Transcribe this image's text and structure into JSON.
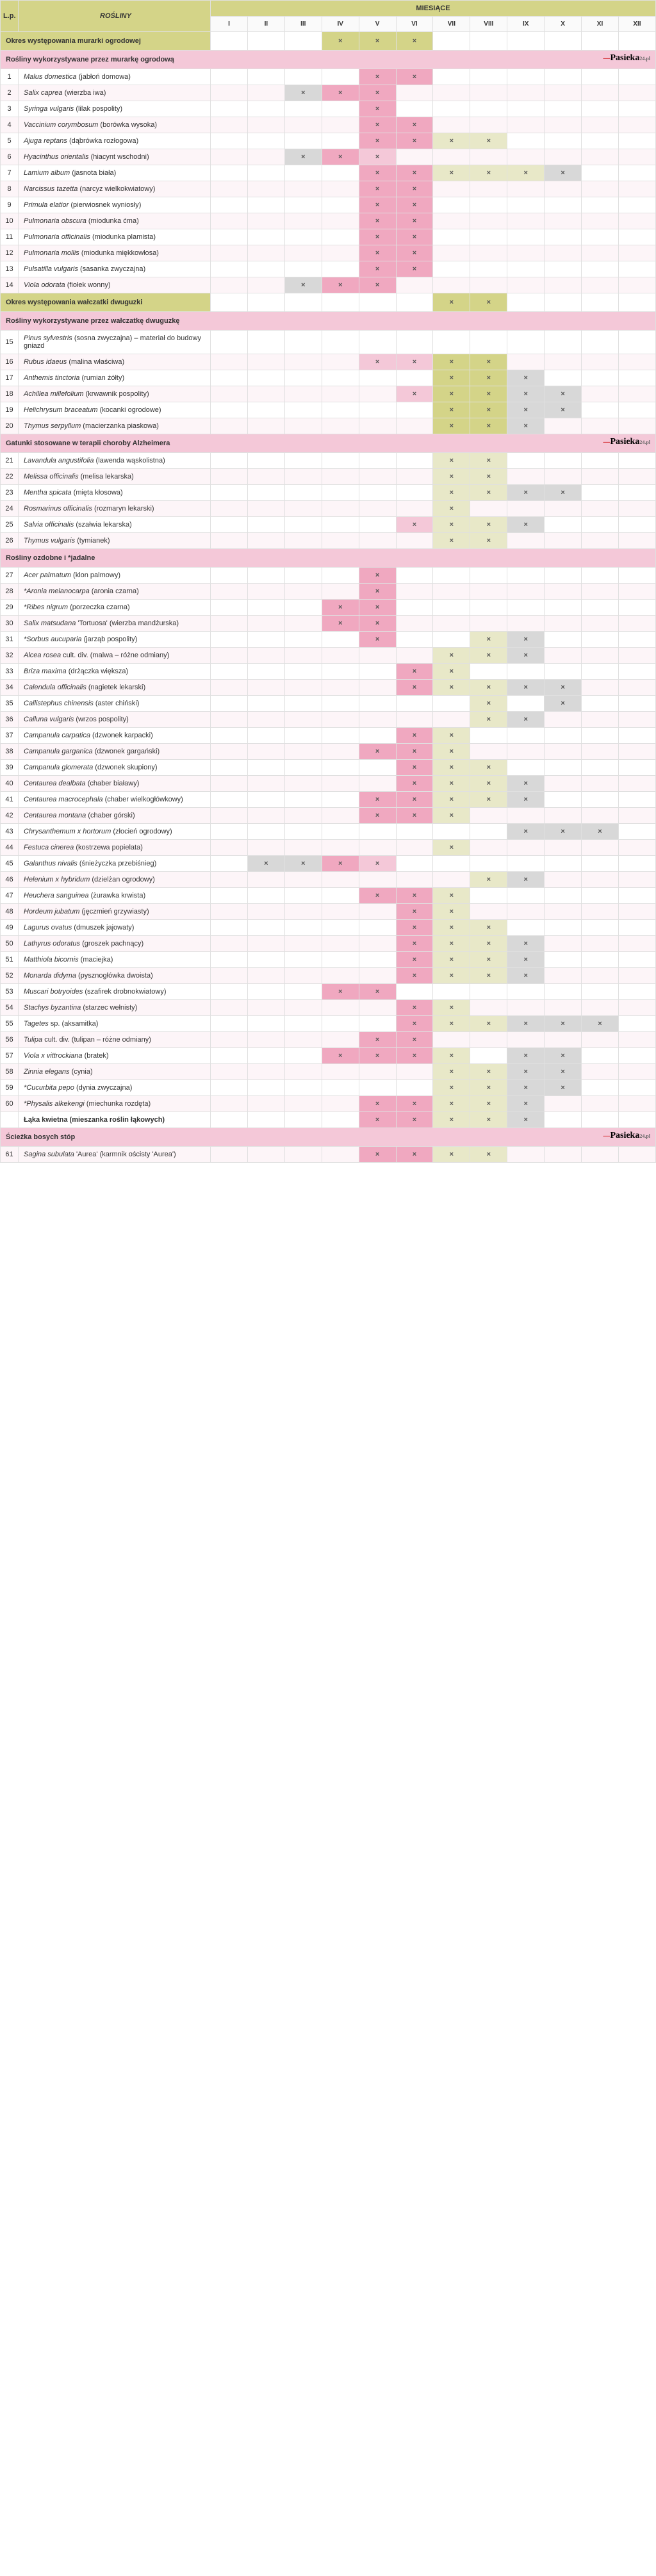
{
  "header": {
    "lp": "L.p.",
    "plants": "ROŚLINY",
    "months": "MIESIĄCE",
    "month_labels": [
      "I",
      "II",
      "III",
      "IV",
      "V",
      "VI",
      "VII",
      "VIII",
      "IX",
      "X",
      "XI",
      "XII"
    ]
  },
  "logo": {
    "pre": "—",
    "main": "Pasieka",
    "suf": "24.pl"
  },
  "rows": [
    {
      "type": "period-g",
      "text": "Okres występowania murarki ogrodowej",
      "marks": {
        "IV": "c-olive",
        "V": "c-olive",
        "VI": "c-olive"
      }
    },
    {
      "type": "section-p",
      "text": "Rośliny wykorzystywane przez murarkę ogrodową",
      "logo": true
    },
    {
      "n": 1,
      "it": "Malus domestica",
      "pl": "(jabłoń domowa)",
      "marks": {
        "V": "c-pink",
        "VI": "c-pink"
      }
    },
    {
      "n": 2,
      "it": "Salix caprea",
      "pl": "(wierzba iwa)",
      "marks": {
        "III": "c-gray",
        "IV": "c-pink",
        "V": "c-pink"
      }
    },
    {
      "n": 3,
      "it": "Syringa vulgaris",
      "pl": "(lilak pospolity)",
      "marks": {
        "V": "c-pink"
      }
    },
    {
      "n": 4,
      "it": "Vaccinium corymbosum",
      "pl": "(borówka wysoka)",
      "marks": {
        "V": "c-pink",
        "VI": "c-pink"
      }
    },
    {
      "n": 5,
      "it": "Ajuga reptans",
      "pl": "(dąbrówka rozłogowa)",
      "marks": {
        "V": "c-pink",
        "VI": "c-pink",
        "VII": "c-lolive",
        "VIII": "c-lolive"
      }
    },
    {
      "n": 6,
      "it": "Hyacinthus orientalis",
      "pl": "(hiacynt wschodni)",
      "marks": {
        "III": "c-gray",
        "IV": "c-pink",
        "V": "c-lpink"
      }
    },
    {
      "n": 7,
      "it": "Lamium album",
      "pl": "(jasnota biała)",
      "marks": {
        "V": "c-pink",
        "VI": "c-pink",
        "VII": "c-lolive",
        "VIII": "c-lolive",
        "IX": "c-lolive",
        "X": "c-gray"
      }
    },
    {
      "n": 8,
      "it": "Narcissus tazetta",
      "pl": "(narcyz wielkokwiatowy)",
      "marks": {
        "V": "c-pink",
        "VI": "c-pink"
      }
    },
    {
      "n": 9,
      "it": "Primula elatior",
      "pl": "(pierwiosnek wyniosły)",
      "marks": {
        "V": "c-pink",
        "VI": "c-pink"
      }
    },
    {
      "n": 10,
      "it": "Pulmonaria obscura",
      "pl": "(miodunka ćma)",
      "marks": {
        "V": "c-pink",
        "VI": "c-pink"
      }
    },
    {
      "n": 11,
      "it": "Pulmonaria officinalis",
      "pl": "(miodunka plamista)",
      "marks": {
        "V": "c-pink",
        "VI": "c-pink"
      }
    },
    {
      "n": 12,
      "it": "Pulmonaria mollis",
      "pl": "(miodunka miękkowłosa)",
      "marks": {
        "V": "c-pink",
        "VI": "c-pink"
      }
    },
    {
      "n": 13,
      "it": "Pulsatilla vulgaris",
      "pl": "(sasanka zwyczajna)",
      "marks": {
        "V": "c-pink",
        "VI": "c-pink"
      }
    },
    {
      "n": 14,
      "it": "Viola odorata",
      "pl": "(fiołek wonny)",
      "marks": {
        "III": "c-gray",
        "IV": "c-pink",
        "V": "c-pink"
      }
    },
    {
      "type": "period-g",
      "text": "Okres występowania wałczatki dwuguzki",
      "marks": {
        "VII": "c-olive",
        "VIII": "c-olive"
      }
    },
    {
      "type": "section-p",
      "text": "Rośliny wykorzystywane przez wałczatkę dwuguzkę"
    },
    {
      "n": 15,
      "it": "Pinus sylvestris",
      "pl": "(sosna zwyczajna) – materiał do budowy gniazd",
      "marks": {}
    },
    {
      "n": 16,
      "it": "Rubus idaeus",
      "pl": "(malina właściwa)",
      "marks": {
        "V": "c-lpink",
        "VI": "c-lpink",
        "VII": "c-olive",
        "VIII": "c-olive"
      }
    },
    {
      "n": 17,
      "it": "Anthemis tinctoria",
      "pl": "(rumian żółty)",
      "marks": {
        "VII": "c-olive",
        "VIII": "c-olive",
        "IX": "c-gray"
      }
    },
    {
      "n": 18,
      "it": "Achillea millefolium",
      "pl": "(krwawnik pospolity)",
      "marks": {
        "VI": "c-lpink",
        "VII": "c-olive",
        "VIII": "c-olive",
        "IX": "c-gray",
        "X": "c-gray"
      }
    },
    {
      "n": 19,
      "it": "Helichrysum braceatum",
      "pl": "(kocanki ogrodowe)",
      "marks": {
        "VII": "c-olive",
        "VIII": "c-olive",
        "IX": "c-gray",
        "X": "c-gray"
      }
    },
    {
      "n": 20,
      "it": "Thymus serpyllum",
      "pl": "(macierzanka piaskowa)",
      "marks": {
        "VII": "c-olive",
        "VIII": "c-olive",
        "IX": "c-gray"
      }
    },
    {
      "type": "section-p",
      "text": "Gatunki stosowane w terapii choroby Alzheimera",
      "logo": true
    },
    {
      "n": 21,
      "it": "Lavandula angustifolia",
      "pl": "(lawenda wąskolistna)",
      "marks": {
        "VII": "c-lolive",
        "VIII": "c-lolive"
      }
    },
    {
      "n": 22,
      "it": "Melissa officinalis",
      "pl": "(melisa lekarska)",
      "marks": {
        "VII": "c-lolive",
        "VIII": "c-lolive"
      }
    },
    {
      "n": 23,
      "it": "Mentha spicata",
      "pl": "(mięta kłosowa)",
      "marks": {
        "VII": "c-lolive",
        "VIII": "c-lolive",
        "IX": "c-gray",
        "X": "c-gray"
      }
    },
    {
      "n": 24,
      "it": "Rosmarinus officinalis",
      "pl": "(rozmaryn lekarski)",
      "marks": {
        "VII": "c-lolive"
      }
    },
    {
      "n": 25,
      "it": "Salvia officinalis",
      "pl": "(szałwia lekarska)",
      "marks": {
        "VI": "c-lpink",
        "VII": "c-lolive",
        "VIII": "c-lolive",
        "IX": "c-gray"
      }
    },
    {
      "n": 26,
      "it": "Thymus vulgaris",
      "pl": "(tymianek)",
      "marks": {
        "VII": "c-lolive",
        "VIII": "c-lolive"
      }
    },
    {
      "type": "section-p",
      "text": "Rośliny ozdobne i *jadalne"
    },
    {
      "n": 27,
      "it": "Acer palmatum",
      "pl": "(klon palmowy)",
      "marks": {
        "V": "c-pink"
      }
    },
    {
      "n": 28,
      "it": "*Aronia melanocarpa",
      "pl": "(aronia czarna)",
      "marks": {
        "V": "c-pink"
      }
    },
    {
      "n": 29,
      "it": "*Ribes nigrum",
      "pl": "(porzeczka czarna)",
      "marks": {
        "IV": "c-pink",
        "V": "c-pink"
      }
    },
    {
      "n": 30,
      "it": "Salix matsudana",
      "pl": "'Tortuosa' (wierzba mandżurska)",
      "marks": {
        "IV": "c-pink",
        "V": "c-pink"
      }
    },
    {
      "n": 31,
      "it": "*Sorbus aucuparia",
      "pl": "(jarząb pospolity)",
      "marks": {
        "V": "c-pink",
        "VIII": "c-lolive",
        "IX": "c-gray"
      }
    },
    {
      "n": 32,
      "it": "Alcea rosea",
      "pl": "cult. div. (malwa – różne odmiany)",
      "marks": {
        "VII": "c-lolive",
        "VIII": "c-lolive",
        "IX": "c-gray"
      }
    },
    {
      "n": 33,
      "it": "Briza maxima",
      "pl": "(drżączka większa)",
      "marks": {
        "VI": "c-pink",
        "VII": "c-lolive"
      }
    },
    {
      "n": 34,
      "it": "Calendula officinalis",
      "pl": "(nagietek lekarski)",
      "marks": {
        "VI": "c-pink",
        "VII": "c-lolive",
        "VIII": "c-lolive",
        "IX": "c-gray",
        "X": "c-gray"
      }
    },
    {
      "n": 35,
      "it": "Callistephus chinensis",
      "pl": "(aster chiński)",
      "marks": {
        "VIII": "c-lolive",
        "X": "c-gray"
      }
    },
    {
      "n": 36,
      "it": "Calluna vulgaris",
      "pl": "(wrzos pospolity)",
      "marks": {
        "VIII": "c-lolive",
        "IX": "c-gray"
      }
    },
    {
      "n": 37,
      "it": "Campanula carpatica",
      "pl": "(dzwonek karpacki)",
      "marks": {
        "VI": "c-pink",
        "VII": "c-lolive"
      }
    },
    {
      "n": 38,
      "it": "Campanula garganica",
      "pl": "(dzwonek gargański)",
      "marks": {
        "V": "c-pink",
        "VI": "c-pink",
        "VII": "c-lolive"
      }
    },
    {
      "n": 39,
      "it": "Campanula glomerata",
      "pl": "(dzwonek skupiony)",
      "marks": {
        "VI": "c-pink",
        "VII": "c-lolive",
        "VIII": "c-lolive"
      }
    },
    {
      "n": 40,
      "it": "Centaurea dealbata",
      "pl": "(chaber białawy)",
      "marks": {
        "VI": "c-pink",
        "VII": "c-lolive",
        "VIII": "c-lolive",
        "IX": "c-gray"
      }
    },
    {
      "n": 41,
      "it": "Centaurea macrocephala",
      "pl": "(chaber wielkogłówkowy)",
      "marks": {
        "V": "c-pink",
        "VI": "c-pink",
        "VII": "c-lolive",
        "VIII": "c-lolive",
        "IX": "c-gray"
      }
    },
    {
      "n": 42,
      "it": "Centaurea montana",
      "pl": "(chaber górski)",
      "marks": {
        "V": "c-pink",
        "VI": "c-pink",
        "VII": "c-lolive"
      }
    },
    {
      "n": 43,
      "it": "Chrysanthemum x hortorum",
      "pl": "(złocień ogrodowy)",
      "marks": {
        "IX": "c-gray",
        "X": "c-gray",
        "XI": "c-gray"
      }
    },
    {
      "n": 44,
      "it": "Festuca cinerea",
      "pl": "(kostrzewa popielata)",
      "marks": {
        "VII": "c-lolive"
      }
    },
    {
      "n": 45,
      "it": "Galanthus nivalis",
      "pl": "(śnieżyczka przebiśnieg)",
      "marks": {
        "II": "c-gray",
        "III": "c-gray",
        "IV": "c-pink",
        "V": "c-lpink"
      }
    },
    {
      "n": 46,
      "it": "Helenium x hybridum",
      "pl": "(dzielżan ogrodowy)",
      "marks": {
        "VIII": "c-lolive",
        "IX": "c-gray"
      }
    },
    {
      "n": 47,
      "it": "Heuchera sanguinea",
      "pl": "(żurawka krwista)",
      "marks": {
        "V": "c-pink",
        "VI": "c-pink",
        "VII": "c-lolive"
      }
    },
    {
      "n": 48,
      "it": "Hordeum jubatum",
      "pl": "(jęczmień grzywiasty)",
      "marks": {
        "VI": "c-pink",
        "VII": "c-lolive"
      }
    },
    {
      "n": 49,
      "it": "Lagurus ovatus",
      "pl": "(dmuszek jajowaty)",
      "marks": {
        "VI": "c-pink",
        "VII": "c-lolive",
        "VIII": "c-lolive"
      }
    },
    {
      "n": 50,
      "it": "Lathyrus odoratus",
      "pl": "(groszek pachnący)",
      "marks": {
        "VI": "c-pink",
        "VII": "c-lolive",
        "VIII": "c-lolive",
        "IX": "c-gray"
      }
    },
    {
      "n": 51,
      "it": "Matthiola bicornis",
      "pl": "(maciejka)",
      "marks": {
        "VI": "c-pink",
        "VII": "c-lolive",
        "VIII": "c-lolive",
        "IX": "c-gray"
      }
    },
    {
      "n": 52,
      "it": "Monarda didyma",
      "pl": "(pysznogłówka dwoista)",
      "marks": {
        "VI": "c-pink",
        "VII": "c-lolive",
        "VIII": "c-lolive",
        "IX": "c-gray"
      }
    },
    {
      "n": 53,
      "it": "Muscari botryoides",
      "pl": "(szafirek drobnokwiatowy)",
      "marks": {
        "IV": "c-pink",
        "V": "c-pink"
      }
    },
    {
      "n": 54,
      "it": "Stachys byzantina",
      "pl": "(starzec wełnisty)",
      "marks": {
        "VI": "c-pink",
        "VII": "c-lolive"
      }
    },
    {
      "n": 55,
      "it": "Tagetes",
      "pl": "sp. (aksamitka)",
      "marks": {
        "VI": "c-pink",
        "VII": "c-lolive",
        "VIII": "c-lolive",
        "IX": "c-gray",
        "X": "c-gray",
        "XI": "c-gray"
      }
    },
    {
      "n": 56,
      "it": "Tulipa",
      "pl": "cult. div. (tulipan – różne odmiany)",
      "marks": {
        "V": "c-pink",
        "VI": "c-pink"
      }
    },
    {
      "n": 57,
      "it": "Viola x vittrockiana",
      "pl": "(bratek)",
      "marks": {
        "IV": "c-pink",
        "V": "c-pink",
        "VI": "c-pink",
        "VII": "c-lolive",
        "IX": "c-gray",
        "X": "c-gray"
      }
    },
    {
      "n": 58,
      "it": "Zinnia elegans",
      "pl": "(cynia)",
      "marks": {
        "VII": "c-lolive",
        "VIII": "c-lolive",
        "IX": "c-gray",
        "X": "c-gray"
      }
    },
    {
      "n": 59,
      "it": "*Cucurbita pepo",
      "pl": "(dynia zwyczajna)",
      "marks": {
        "VII": "c-lolive",
        "VIII": "c-lolive",
        "IX": "c-gray",
        "X": "c-gray"
      }
    },
    {
      "n": 60,
      "it": "*Physalis alkekengi",
      "pl": "(miechunka rozdęta)",
      "marks": {
        "V": "c-pink",
        "VI": "c-pink",
        "VII": "c-lolive",
        "VIII": "c-lolive",
        "IX": "c-gray"
      }
    },
    {
      "type": "bold",
      "text": "Łąka kwietna (mieszanka roślin łąkowych)",
      "marks": {
        "V": "c-pink",
        "VI": "c-pink",
        "VII": "c-lolive",
        "VIII": "c-lolive",
        "IX": "c-gray"
      }
    },
    {
      "type": "section-p",
      "text": "Ścieżka bosych stóp",
      "logo": true
    },
    {
      "n": 61,
      "it": "Sagina subulata",
      "pl": "'Aurea' (karmnik ościsty 'Aurea')",
      "marks": {
        "V": "c-pink",
        "VI": "c-pink",
        "VII": "c-lolive",
        "VIII": "c-lolive"
      }
    }
  ]
}
